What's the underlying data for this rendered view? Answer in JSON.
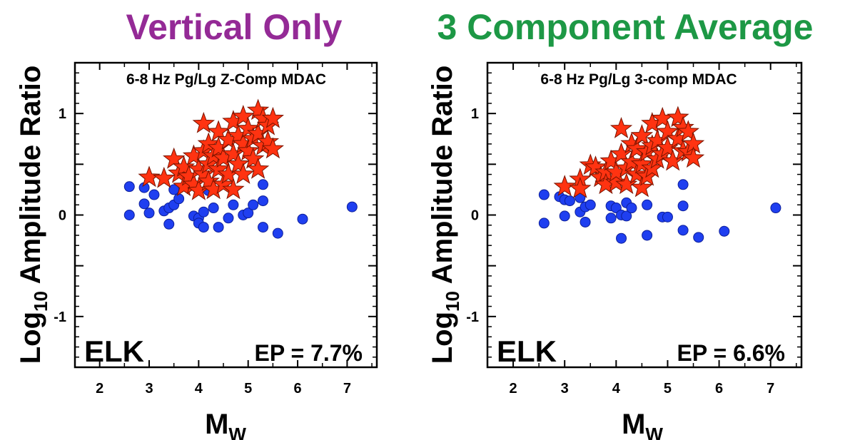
{
  "chart_data": [
    {
      "type": "scatter",
      "heading": "Vertical Only",
      "heading_color": "#942a96",
      "title": "6-8 Hz Pg/Lg Z-Comp MDAC",
      "station": "ELK",
      "ep_label": "EP = 7.7%",
      "xlabel": "M",
      "xlabel_sub": "W",
      "ylabel": "Log",
      "ylabel_sub": "10",
      "ylabel_rest": " Amplitude Ratio",
      "xlim": [
        1.5,
        7.6
      ],
      "ylim": [
        -1.5,
        1.5
      ],
      "xticks": [
        "2",
        "3",
        "4",
        "5",
        "6",
        "7"
      ],
      "yticks": [
        "1",
        "0",
        "-1"
      ],
      "grid": false,
      "series": [
        {
          "marker": "circle",
          "color": "#1f3ff0",
          "points": [
            [
              2.6,
              0.28
            ],
            [
              2.6,
              0.0
            ],
            [
              2.9,
              0.27
            ],
            [
              2.9,
              0.11
            ],
            [
              3.0,
              0.02
            ],
            [
              3.1,
              0.2
            ],
            [
              3.3,
              0.04
            ],
            [
              3.4,
              0.07
            ],
            [
              3.4,
              -0.09
            ],
            [
              3.5,
              0.25
            ],
            [
              3.5,
              0.1
            ],
            [
              3.6,
              0.16
            ],
            [
              3.9,
              -0.01
            ],
            [
              4.0,
              -0.03
            ],
            [
              4.0,
              -0.08
            ],
            [
              4.1,
              -0.12
            ],
            [
              4.1,
              0.03
            ],
            [
              4.2,
              0.24
            ],
            [
              4.3,
              0.07
            ],
            [
              4.4,
              -0.12
            ],
            [
              4.6,
              -0.03
            ],
            [
              4.7,
              0.1
            ],
            [
              4.9,
              0.0
            ],
            [
              5.0,
              0.02
            ],
            [
              5.1,
              0.1
            ],
            [
              5.3,
              0.3
            ],
            [
              5.3,
              0.14
            ],
            [
              5.3,
              -0.12
            ],
            [
              5.6,
              -0.18
            ],
            [
              6.1,
              -0.04
            ],
            [
              7.1,
              0.08
            ]
          ]
        },
        {
          "marker": "star",
          "color": "#ff3311",
          "points": [
            [
              3.0,
              0.37
            ],
            [
              3.3,
              0.36
            ],
            [
              3.5,
              0.55
            ],
            [
              3.6,
              0.41
            ],
            [
              3.7,
              0.47
            ],
            [
              3.7,
              0.28
            ],
            [
              3.8,
              0.38
            ],
            [
              3.9,
              0.58
            ],
            [
              3.9,
              0.3
            ],
            [
              4.0,
              0.45
            ],
            [
              4.0,
              0.24
            ],
            [
              4.1,
              0.9
            ],
            [
              4.1,
              0.63
            ],
            [
              4.1,
              0.4
            ],
            [
              4.2,
              0.7
            ],
            [
              4.2,
              0.5
            ],
            [
              4.2,
              0.33
            ],
            [
              4.3,
              0.25
            ],
            [
              4.3,
              0.58
            ],
            [
              4.4,
              0.82
            ],
            [
              4.4,
              0.66
            ],
            [
              4.4,
              0.45
            ],
            [
              4.5,
              0.56
            ],
            [
              4.5,
              0.3
            ],
            [
              4.6,
              0.74
            ],
            [
              4.6,
              0.4
            ],
            [
              4.7,
              0.92
            ],
            [
              4.7,
              0.6
            ],
            [
              4.7,
              0.25
            ],
            [
              4.8,
              0.78
            ],
            [
              4.8,
              0.5
            ],
            [
              4.9,
              0.97
            ],
            [
              4.9,
              0.7
            ],
            [
              4.9,
              0.4
            ],
            [
              5.0,
              0.85
            ],
            [
              5.0,
              0.63
            ],
            [
              5.1,
              0.75
            ],
            [
              5.1,
              0.55
            ],
            [
              5.2,
              1.03
            ],
            [
              5.2,
              0.8
            ],
            [
              5.2,
              0.45
            ],
            [
              5.3,
              0.95
            ],
            [
              5.3,
              0.68
            ],
            [
              5.4,
              0.88
            ],
            [
              5.4,
              0.72
            ],
            [
              5.5,
              0.95
            ],
            [
              5.5,
              0.65
            ]
          ]
        }
      ]
    },
    {
      "type": "scatter",
      "heading": "3 Component Average",
      "heading_color": "#1d9845",
      "title": "6-8 Hz Pg/Lg 3-comp MDAC",
      "station": "ELK",
      "ep_label": "EP = 6.6%",
      "xlabel": "M",
      "xlabel_sub": "W",
      "ylabel": "Log",
      "ylabel_sub": "10",
      "ylabel_rest": " Amplitude Ratio",
      "xlim": [
        1.5,
        7.6
      ],
      "ylim": [
        -1.5,
        1.5
      ],
      "xticks": [
        "2",
        "3",
        "4",
        "5",
        "6",
        "7"
      ],
      "yticks": [
        "1",
        "0",
        "-1"
      ],
      "grid": false,
      "series": [
        {
          "marker": "circle",
          "color": "#1f3ff0",
          "points": [
            [
              2.6,
              0.2
            ],
            [
              2.6,
              -0.08
            ],
            [
              2.9,
              0.18
            ],
            [
              3.0,
              0.15
            ],
            [
              3.0,
              -0.01
            ],
            [
              3.1,
              0.14
            ],
            [
              3.3,
              0.17
            ],
            [
              3.3,
              0.03
            ],
            [
              3.4,
              0.08
            ],
            [
              3.4,
              -0.07
            ],
            [
              3.5,
              0.1
            ],
            [
              3.9,
              0.09
            ],
            [
              3.9,
              -0.03
            ],
            [
              4.0,
              0.07
            ],
            [
              4.1,
              -0.23
            ],
            [
              4.1,
              0.0
            ],
            [
              4.2,
              0.12
            ],
            [
              4.2,
              -0.01
            ],
            [
              4.3,
              0.07
            ],
            [
              4.6,
              -0.2
            ],
            [
              4.6,
              0.1
            ],
            [
              4.9,
              -0.02
            ],
            [
              5.0,
              -0.02
            ],
            [
              5.3,
              0.3
            ],
            [
              5.3,
              0.09
            ],
            [
              5.3,
              -0.15
            ],
            [
              5.6,
              -0.22
            ],
            [
              6.1,
              -0.16
            ],
            [
              7.1,
              0.07
            ]
          ]
        },
        {
          "marker": "star",
          "color": "#ff3311",
          "points": [
            [
              3.0,
              0.28
            ],
            [
              3.3,
              0.35
            ],
            [
              3.3,
              0.26
            ],
            [
              3.5,
              0.49
            ],
            [
              3.6,
              0.47
            ],
            [
              3.7,
              0.37
            ],
            [
              3.8,
              0.42
            ],
            [
              3.8,
              0.3
            ],
            [
              3.9,
              0.53
            ],
            [
              4.0,
              0.32
            ],
            [
              4.0,
              0.42
            ],
            [
              4.1,
              0.85
            ],
            [
              4.1,
              0.6
            ],
            [
              4.2,
              0.46
            ],
            [
              4.2,
              0.3
            ],
            [
              4.3,
              0.7
            ],
            [
              4.3,
              0.52
            ],
            [
              4.4,
              0.4
            ],
            [
              4.4,
              0.65
            ],
            [
              4.5,
              0.78
            ],
            [
              4.5,
              0.5
            ],
            [
              4.5,
              0.27
            ],
            [
              4.6,
              0.62
            ],
            [
              4.6,
              0.38
            ],
            [
              4.7,
              0.9
            ],
            [
              4.7,
              0.68
            ],
            [
              4.7,
              0.46
            ],
            [
              4.8,
              0.73
            ],
            [
              4.8,
              0.55
            ],
            [
              4.9,
              0.95
            ],
            [
              4.9,
              0.6
            ],
            [
              5.0,
              0.82
            ],
            [
              5.0,
              0.66
            ],
            [
              5.1,
              0.53
            ],
            [
              5.2,
              0.96
            ],
            [
              5.2,
              0.75
            ],
            [
              5.3,
              0.63
            ],
            [
              5.3,
              0.86
            ],
            [
              5.4,
              0.82
            ],
            [
              5.4,
              0.62
            ],
            [
              5.5,
              0.7
            ],
            [
              5.5,
              0.56
            ]
          ]
        }
      ]
    }
  ]
}
